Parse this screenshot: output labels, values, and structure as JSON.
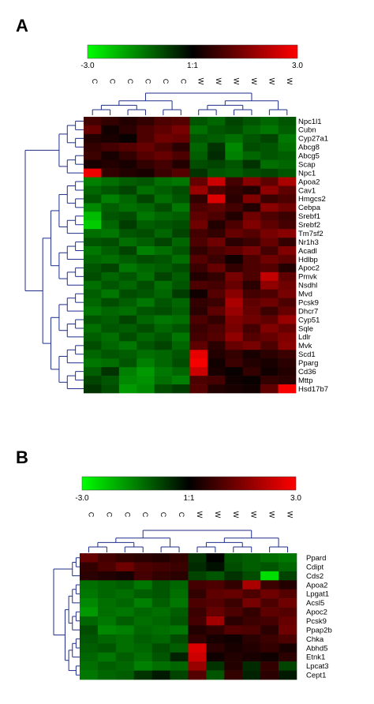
{
  "panels": {
    "A": {
      "letter": "A"
    },
    "B": {
      "letter": "B"
    }
  },
  "chart_data": [
    {
      "type": "heatmap",
      "panel": "A",
      "colorscale": {
        "min_label": "-3.0",
        "mid_label": "1:1",
        "max_label": "3.0",
        "min": -3.0,
        "max": 3.0,
        "low_color": "#00ff00",
        "mid_color": "#000000",
        "high_color": "#ff0000"
      },
      "columns": [
        "C",
        "C",
        "C",
        "C",
        "C",
        "C",
        "W",
        "W",
        "W",
        "W",
        "W",
        "W"
      ],
      "rows": [
        "Npc1l1",
        "Cubn",
        "Cyp27a1",
        "Abcg8",
        "Abcg5",
        "Scap",
        "Npc1",
        "Apoa2",
        "Cav1",
        "Hmgcs2",
        "Cebpa",
        "Srebf1",
        "Srebf2",
        "Tm7sf2",
        "Nr1h3",
        "Acadl",
        "Hdlbp",
        "Apoc2",
        "Pmvk",
        "Nsdhl",
        "Mvd",
        "Pcsk9",
        "Dhcr7",
        "Cyp51",
        "Sqle",
        "Ldlr",
        "Mvk",
        "Scd1",
        "Pparg",
        "Cd36",
        "Mttp",
        "Hsd17b7"
      ],
      "values": [
        [
          0.8,
          0.6,
          0.4,
          0.6,
          0.9,
          1.0,
          -1.0,
          -1.2,
          -0.8,
          -1.0,
          -1.2,
          -1.0
        ],
        [
          1.2,
          0.2,
          0.5,
          0.9,
          1.1,
          1.4,
          -1.3,
          -1.0,
          -0.9,
          -1.2,
          -1.4,
          -1.1
        ],
        [
          0.4,
          0.3,
          0.1,
          0.9,
          1.3,
          1.2,
          -1.0,
          -1.1,
          -1.3,
          -1.0,
          -0.8,
          -1.4
        ],
        [
          0.6,
          0.8,
          1.0,
          1.2,
          0.9,
          0.5,
          -1.2,
          -0.6,
          -1.6,
          -0.9,
          -1.0,
          -1.3
        ],
        [
          0.7,
          0.3,
          0.6,
          1.0,
          1.2,
          0.9,
          -1.1,
          -0.5,
          -1.5,
          -1.2,
          -1.0,
          -1.1
        ],
        [
          0.3,
          0.4,
          0.3,
          0.6,
          0.8,
          0.4,
          -0.9,
          -0.8,
          -1.0,
          -0.6,
          -1.3,
          -1.2
        ],
        [
          2.8,
          0.6,
          0.4,
          0.3,
          0.7,
          1.0,
          -0.6,
          -1.0,
          -1.1,
          -0.9,
          -0.8,
          -1.0
        ],
        [
          -1.5,
          -1.3,
          -1.1,
          -1.0,
          -1.3,
          -1.4,
          1.2,
          2.4,
          0.8,
          1.6,
          1.1,
          2.0
        ],
        [
          -1.2,
          -1.0,
          -0.8,
          -1.3,
          -1.1,
          -0.9,
          1.8,
          0.9,
          0.6,
          0.4,
          1.7,
          1.1
        ],
        [
          -1.0,
          -1.5,
          -1.2,
          -0.8,
          -1.3,
          -1.0,
          0.6,
          2.6,
          0.5,
          1.5,
          0.7,
          0.9
        ],
        [
          -1.6,
          -1.1,
          -1.3,
          -1.2,
          -0.9,
          -1.4,
          0.9,
          1.1,
          0.8,
          0.4,
          1.6,
          1.3
        ],
        [
          -2.2,
          -1.0,
          -0.9,
          -1.4,
          -1.2,
          -1.1,
          1.1,
          0.9,
          0.4,
          1.3,
          0.9,
          0.7
        ],
        [
          -2.4,
          -1.2,
          -0.7,
          -1.1,
          -1.0,
          -0.9,
          1.3,
          0.4,
          0.9,
          1.5,
          1.1,
          0.8
        ],
        [
          -1.3,
          -1.4,
          -1.0,
          -0.9,
          -1.2,
          -0.8,
          0.8,
          0.6,
          1.2,
          1.0,
          1.4,
          1.6
        ],
        [
          -1.0,
          -0.9,
          -1.3,
          -1.1,
          -0.8,
          -1.2,
          0.9,
          1.3,
          0.5,
          0.7,
          1.2,
          0.6
        ],
        [
          -1.4,
          -1.1,
          -0.8,
          -1.5,
          -1.3,
          -1.0,
          0.6,
          0.9,
          1.1,
          1.4,
          0.8,
          1.5
        ],
        [
          -1.2,
          -1.3,
          -1.1,
          -0.9,
          -1.0,
          -1.3,
          1.0,
          0.7,
          0.2,
          0.9,
          1.3,
          1.1
        ],
        [
          -1.0,
          -0.8,
          -1.4,
          -1.2,
          -1.1,
          -0.9,
          0.7,
          1.2,
          0.6,
          0.9,
          1.0,
          0.4
        ],
        [
          -0.9,
          -1.2,
          -1.0,
          -1.3,
          -0.8,
          -1.1,
          0.4,
          0.6,
          1.4,
          0.9,
          2.3,
          1.1
        ],
        [
          -1.3,
          -1.0,
          -1.2,
          -0.9,
          -1.3,
          -1.0,
          0.9,
          0.8,
          1.2,
          0.5,
          1.7,
          1.3
        ],
        [
          -1.1,
          -1.4,
          -0.9,
          -1.0,
          -1.2,
          -0.7,
          0.2,
          1.0,
          1.6,
          0.8,
          0.9,
          1.4
        ],
        [
          -1.2,
          -0.9,
          -1.1,
          -1.4,
          -1.0,
          -1.2,
          0.6,
          0.7,
          2.0,
          1.1,
          1.3,
          0.9
        ],
        [
          -1.4,
          -1.2,
          -1.3,
          -1.0,
          -0.9,
          -1.1,
          0.5,
          1.1,
          1.8,
          1.2,
          0.7,
          1.2
        ],
        [
          -1.0,
          -1.1,
          -0.8,
          -1.2,
          -1.4,
          -1.3,
          0.9,
          0.6,
          1.5,
          1.3,
          1.1,
          1.8
        ],
        [
          -1.3,
          -1.0,
          -1.1,
          -0.9,
          -1.2,
          -1.0,
          0.7,
          0.9,
          1.4,
          0.8,
          1.5,
          1.2
        ],
        [
          -1.1,
          -1.3,
          -0.9,
          -1.2,
          -1.0,
          -1.4,
          0.8,
          1.0,
          1.7,
          1.0,
          1.2,
          1.5
        ],
        [
          -0.9,
          -1.2,
          -1.4,
          -1.0,
          -0.8,
          -1.2,
          1.1,
          0.5,
          1.2,
          1.4,
          0.9,
          1.6
        ],
        [
          -1.2,
          -1.0,
          -1.1,
          -1.3,
          -1.2,
          -1.0,
          2.7,
          0.4,
          0.6,
          0.3,
          0.5,
          0.7
        ],
        [
          -1.4,
          -1.3,
          -1.0,
          -1.5,
          -1.2,
          -0.9,
          2.9,
          0.2,
          0.7,
          0.4,
          0.3,
          0.5
        ],
        [
          -1.1,
          -0.6,
          -1.5,
          -1.8,
          -1.4,
          -1.2,
          2.4,
          0.3,
          0.1,
          0.6,
          0.2,
          0.4
        ],
        [
          -0.8,
          -1.0,
          -1.6,
          -1.7,
          -1.3,
          -1.5,
          0.9,
          0.8,
          0.2,
          0.1,
          0.6,
          0.5
        ],
        [
          -0.6,
          -0.9,
          -1.8,
          -1.6,
          -0.9,
          -0.7,
          1.0,
          0.4,
          0.3,
          0.2,
          1.1,
          2.9
        ]
      ]
    },
    {
      "type": "heatmap",
      "panel": "B",
      "colorscale": {
        "min_label": "-3.0",
        "mid_label": "1:1",
        "max_label": "3.0",
        "min": -3.0,
        "max": 3.0,
        "low_color": "#00ff00",
        "mid_color": "#000000",
        "high_color": "#ff0000"
      },
      "columns": [
        "C",
        "C",
        "C",
        "C",
        "C",
        "C",
        "W",
        "W",
        "W",
        "W",
        "W",
        "W"
      ],
      "rows": [
        "Ppard",
        "Cdipt",
        "Cds2",
        "Apoa2",
        "Lpgat1",
        "Acsl5",
        "Apoc2",
        "Pcsk9",
        "Ppap2b",
        "Chka",
        "Abhd5",
        "Etnk1",
        "Lpcat3",
        "Cept1"
      ],
      "values": [
        [
          1.2,
          0.8,
          0.6,
          0.5,
          0.4,
          0.6,
          -0.6,
          0.0,
          -1.0,
          -1.1,
          -1.3,
          -1.4
        ],
        [
          0.6,
          0.9,
          1.3,
          0.9,
          0.8,
          0.7,
          -0.5,
          -0.2,
          -0.9,
          -1.1,
          -1.0,
          -1.2
        ],
        [
          0.5,
          0.4,
          0.3,
          0.8,
          0.6,
          0.5,
          -0.8,
          -1.0,
          -0.6,
          -0.9,
          -2.6,
          -0.8
        ],
        [
          -1.3,
          -1.2,
          -1.1,
          -1.4,
          -1.0,
          -1.2,
          0.8,
          0.9,
          0.6,
          2.0,
          0.7,
          0.4
        ],
        [
          -1.4,
          -1.2,
          -1.3,
          -1.1,
          -1.0,
          -1.3,
          0.6,
          1.1,
          1.2,
          0.9,
          1.3,
          1.0
        ],
        [
          -1.6,
          -1.3,
          -1.2,
          -1.5,
          -1.1,
          -1.4,
          0.9,
          1.0,
          0.7,
          1.4,
          0.9,
          1.3
        ],
        [
          -1.8,
          -1.3,
          -1.4,
          -1.2,
          -1.3,
          -1.1,
          0.7,
          1.2,
          0.9,
          0.6,
          1.1,
          1.0
        ],
        [
          -1.2,
          -1.4,
          -1.1,
          -1.3,
          -1.2,
          -1.0,
          0.8,
          1.9,
          0.5,
          0.7,
          0.8,
          1.2
        ],
        [
          -0.9,
          -1.6,
          -1.5,
          -1.2,
          -1.3,
          -1.4,
          0.4,
          0.6,
          1.0,
          0.9,
          0.5,
          1.3
        ],
        [
          -1.0,
          -1.2,
          -1.3,
          -1.1,
          -1.2,
          -0.9,
          0.6,
          0.3,
          0.2,
          0.5,
          0.7,
          0.9
        ],
        [
          -1.1,
          -1.0,
          -1.3,
          -1.2,
          -0.9,
          -1.1,
          2.6,
          0.5,
          0.3,
          0.4,
          0.6,
          0.3
        ],
        [
          -1.2,
          -1.4,
          -1.1,
          -1.3,
          -1.0,
          -0.4,
          2.4,
          0.2,
          0.4,
          0.3,
          0.2,
          0.5
        ],
        [
          -1.3,
          -1.1,
          -1.2,
          -1.5,
          -1.3,
          -1.2,
          1.8,
          -0.6,
          0.4,
          -0.5,
          0.6,
          -0.8
        ],
        [
          -1.4,
          -1.2,
          -1.1,
          -0.6,
          -0.3,
          -0.8,
          1.0,
          -1.0,
          0.6,
          -0.4,
          0.5,
          -0.3
        ]
      ]
    }
  ]
}
